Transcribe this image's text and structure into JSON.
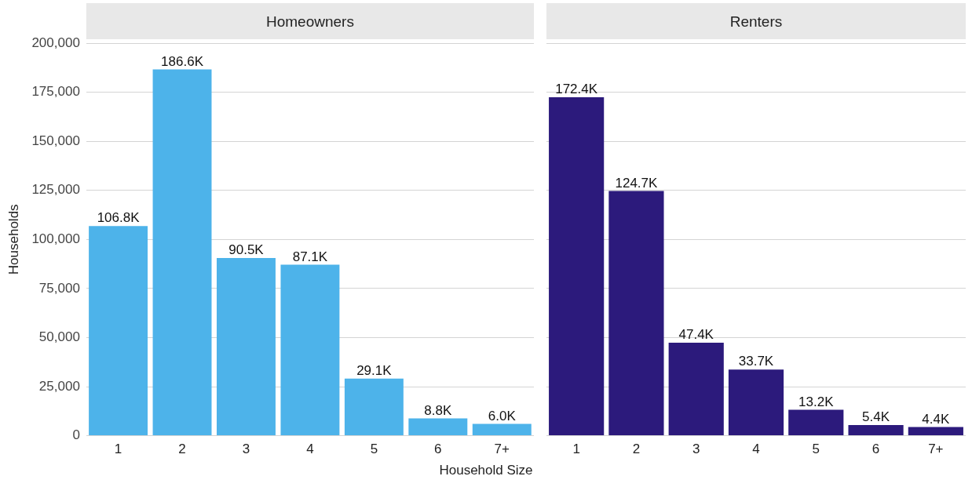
{
  "chart_data": [
    {
      "type": "bar",
      "title": "Homeowners",
      "xlabel": "Household Size",
      "ylabel": "Households",
      "categories": [
        "1",
        "2",
        "3",
        "4",
        "5",
        "6",
        "7+"
      ],
      "values": [
        106800,
        186600,
        90500,
        87100,
        29100,
        8800,
        6000
      ],
      "value_labels": [
        "106.8K",
        "186.6K",
        "90.5K",
        "87.1K",
        "29.1K",
        "8.8K",
        "6.0K"
      ],
      "color": "#4db3ea",
      "ylim": [
        0,
        200000
      ],
      "yticks": [
        0,
        {
          "value": 25000,
          "label": "25,000"
        },
        {
          "value": 50000,
          "label": "50,000"
        },
        {
          "value": 75000,
          "label": "75,000"
        },
        {
          "value": 100000,
          "label": "100,000"
        },
        {
          "value": 125000,
          "label": "125,000"
        },
        {
          "value": 150000,
          "label": "150,000"
        },
        {
          "value": 175000,
          "label": "175,000"
        },
        {
          "value": 200000,
          "label": "200,000"
        }
      ],
      "grid": "y"
    },
    {
      "type": "bar",
      "title": "Renters",
      "categories": [
        "1",
        "2",
        "3",
        "4",
        "5",
        "6",
        "7+"
      ],
      "values": [
        172400,
        124700,
        47400,
        33700,
        13200,
        5400,
        4400
      ],
      "value_labels": [
        "172.4K",
        "124.7K",
        "47.4K",
        "33.7K",
        "13.2K",
        "5.4K",
        "4.4K"
      ],
      "color": "#2c1a7c",
      "ylim": [
        0,
        200000
      ],
      "yticks": [
        0,
        25000,
        50000,
        75000,
        100000,
        125000,
        150000,
        175000,
        200000
      ],
      "grid": "y",
      "tick_labels": "x"
    }
  ]
}
